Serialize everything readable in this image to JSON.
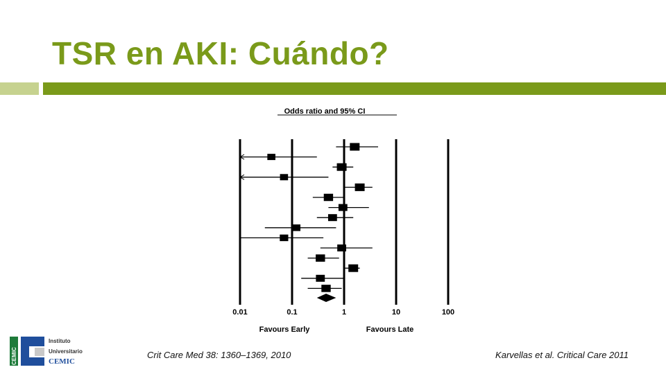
{
  "slide": {
    "title": "TSR en AKI: Cuándo?",
    "title_color": "#7a9a1a",
    "bar_left_color": "#c6d28f",
    "bar_right_color": "#7a9a1a"
  },
  "chart_data": {
    "type": "forest",
    "title": "Odds ratio and 95% CI",
    "x_scale": "log",
    "xlim": [
      0.01,
      100
    ],
    "x_ticks": [
      {
        "value": 0.01,
        "label": "0.01"
      },
      {
        "value": 0.1,
        "label": "0.1"
      },
      {
        "value": 1,
        "label": "1"
      },
      {
        "value": 10,
        "label": "10"
      },
      {
        "value": 100,
        "label": "100"
      }
    ],
    "left_label": "Favours Early",
    "right_label": "Favours Late",
    "studies": [
      {
        "or": 1.6,
        "low": 0.7,
        "high": 4.5,
        "weight": 1.0
      },
      {
        "or": 0.04,
        "low": 0.01,
        "high": 0.3,
        "weight": 0.6,
        "low_arrow": true
      },
      {
        "or": 0.9,
        "low": 0.6,
        "high": 1.5,
        "weight": 1.0
      },
      {
        "or": 0.07,
        "low": 0.01,
        "high": 0.5,
        "weight": 0.6,
        "low_arrow": true
      },
      {
        "or": 2.0,
        "low": 1.0,
        "high": 3.5,
        "weight": 1.0
      },
      {
        "or": 0.5,
        "low": 0.25,
        "high": 1.0,
        "weight": 0.9
      },
      {
        "or": 0.95,
        "low": 0.5,
        "high": 3.0,
        "weight": 0.8
      },
      {
        "or": 0.6,
        "low": 0.3,
        "high": 1.5,
        "weight": 0.8
      },
      {
        "or": 0.12,
        "low": 0.03,
        "high": 0.7,
        "weight": 0.7
      },
      {
        "or": 0.07,
        "low": 0.01,
        "high": 0.4,
        "weight": 0.7
      },
      {
        "or": 0.9,
        "low": 0.35,
        "high": 3.5,
        "weight": 0.8
      },
      {
        "or": 0.35,
        "low": 0.2,
        "high": 0.8,
        "weight": 0.9
      },
      {
        "or": 1.5,
        "low": 1.0,
        "high": 2.0,
        "weight": 1.0
      },
      {
        "or": 0.35,
        "low": 0.15,
        "high": 1.0,
        "weight": 0.8
      },
      {
        "or": 0.45,
        "low": 0.2,
        "high": 0.9,
        "weight": 0.9
      }
    ],
    "pooled": {
      "or": 0.45,
      "low": 0.3,
      "high": 0.7
    }
  },
  "citations": {
    "left": "Crit Care Med 38: 1360–1369, 2010",
    "right": "Karvellas et al. Critical Care 2011"
  },
  "logo": {
    "line1": "Instituto",
    "line2": "Universitario",
    "line3": "CEMIC",
    "side_text": "CEMIC",
    "green": "#1e7b3a",
    "blue": "#1f4e9c"
  }
}
